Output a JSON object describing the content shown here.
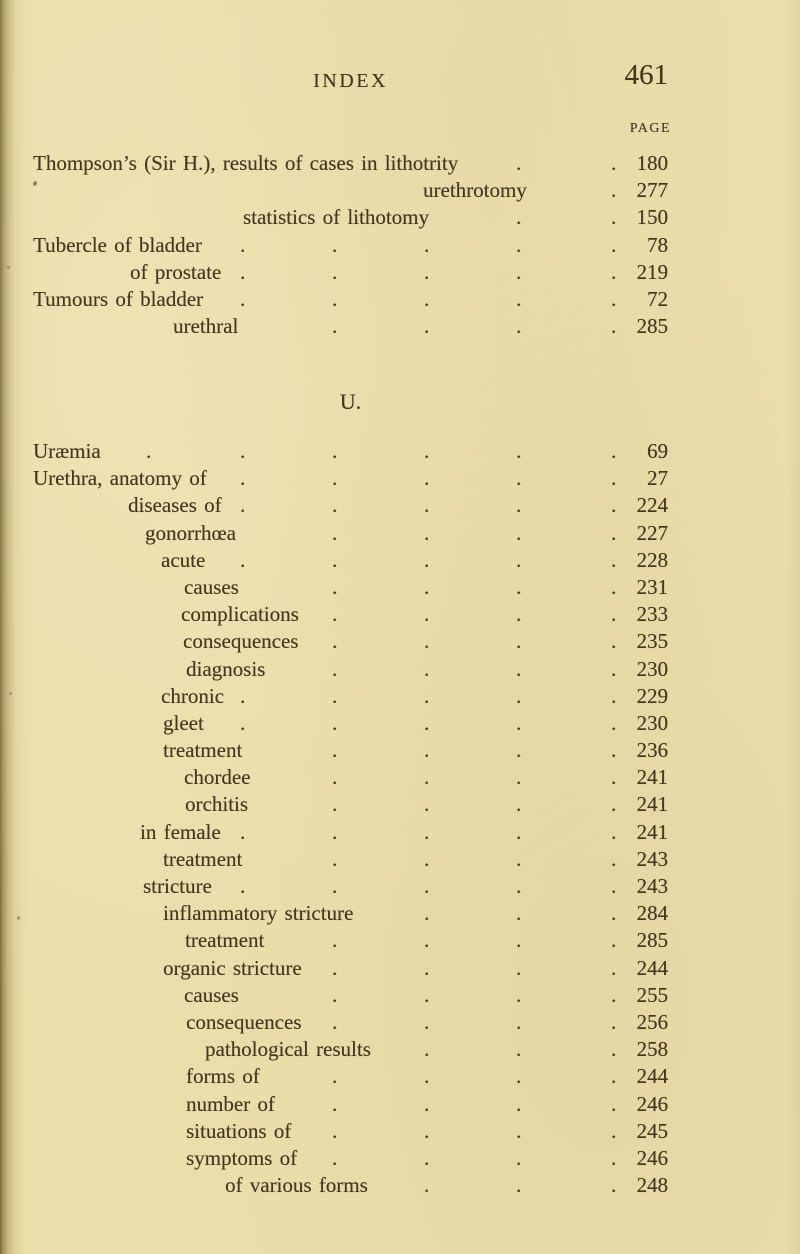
{
  "header": {
    "title": "INDEX",
    "folio": "461",
    "column_label": "PAGE"
  },
  "sections": [
    {
      "heading": "",
      "entries": [
        {
          "label": "Thompson’s (Sir H.), results of cases in lithotrity",
          "page": "180",
          "indent": 33
        },
        {
          "label": "urethrotomy",
          "page": "277",
          "indent": 423
        },
        {
          "label": "statistics of lithotomy",
          "page": "150",
          "indent": 243
        },
        {
          "label": "Tubercle of bladder",
          "page": "78",
          "indent": 33
        },
        {
          "label": "of prostate",
          "page": "219",
          "indent": 130
        },
        {
          "label": "Tumours of bladder",
          "page": "72",
          "indent": 33
        },
        {
          "label": "urethral",
          "page": "285",
          "indent": 173
        }
      ]
    },
    {
      "heading": "U.",
      "entries": [
        {
          "label": "Uræmia",
          "page": "69",
          "indent": 33
        },
        {
          "label": "Urethra, anatomy of",
          "page": "27",
          "indent": 33
        },
        {
          "label": "diseases of",
          "page": "224",
          "indent": 128
        },
        {
          "label": "gonorrhœa",
          "page": "227",
          "indent": 145
        },
        {
          "label": "acute",
          "page": "228",
          "indent": 161
        },
        {
          "label": "causes",
          "page": "231",
          "indent": 184
        },
        {
          "label": "complications",
          "page": "233",
          "indent": 181
        },
        {
          "label": "consequences",
          "page": "235",
          "indent": 183
        },
        {
          "label": "diagnosis",
          "page": "230",
          "indent": 186
        },
        {
          "label": "chronic",
          "page": "229",
          "indent": 161
        },
        {
          "label": "gleet",
          "page": "230",
          "indent": 163
        },
        {
          "label": "treatment",
          "page": "236",
          "indent": 163
        },
        {
          "label": "chordee",
          "page": "241",
          "indent": 184
        },
        {
          "label": "orchitis",
          "page": "241",
          "indent": 185
        },
        {
          "label": "in female",
          "page": "241",
          "indent": 140
        },
        {
          "label": "treatment",
          "page": "243",
          "indent": 163
        },
        {
          "label": "stricture",
          "page": "243",
          "indent": 143
        },
        {
          "label": "inflammatory stricture",
          "page": "284",
          "indent": 163
        },
        {
          "label": "treatment",
          "page": "285",
          "indent": 185
        },
        {
          "label": "organic stricture",
          "page": "244",
          "indent": 163
        },
        {
          "label": "causes",
          "page": "255",
          "indent": 184
        },
        {
          "label": "consequences",
          "page": "256",
          "indent": 186
        },
        {
          "label": "pathological results",
          "page": "258",
          "indent": 205
        },
        {
          "label": "forms of",
          "page": "244",
          "indent": 186
        },
        {
          "label": "number of",
          "page": "246",
          "indent": 186
        },
        {
          "label": "situations of",
          "page": "245",
          "indent": 186
        },
        {
          "label": "symptoms of",
          "page": "246",
          "indent": 186
        },
        {
          "label": "of various forms",
          "page": "248",
          "indent": 225
        }
      ]
    }
  ],
  "leader": {
    "dot_columns": [
      146,
      240,
      332,
      424,
      516,
      611
    ]
  },
  "colors": {
    "paper": "#ebdfac",
    "ink": "#44361f",
    "gutter_edge": "#7e6c40"
  }
}
